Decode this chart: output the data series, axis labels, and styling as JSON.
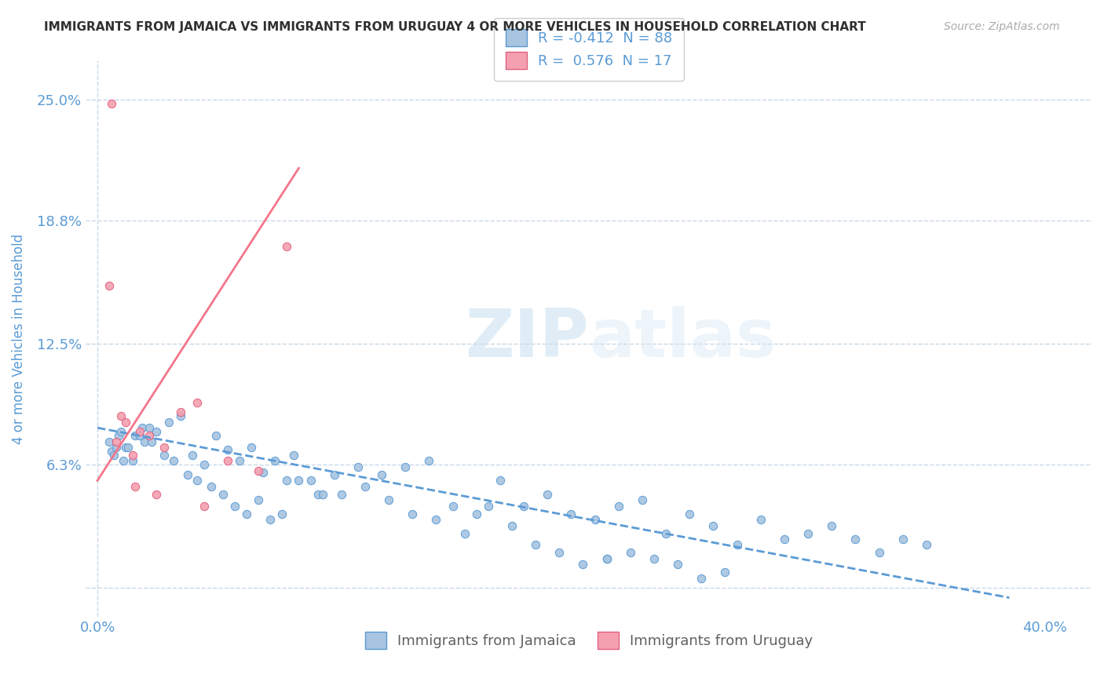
{
  "title": "IMMIGRANTS FROM JAMAICA VS IMMIGRANTS FROM URUGUAY 4 OR MORE VEHICLES IN HOUSEHOLD CORRELATION CHART",
  "source": "Source: ZipAtlas.com",
  "ylabel": "4 or more Vehicles in Household",
  "x_ticks": [
    0.0,
    0.4
  ],
  "x_tick_labels": [
    "0.0%",
    "40.0%"
  ],
  "y_ticks": [
    0.0,
    0.063,
    0.125,
    0.188,
    0.25
  ],
  "y_tick_labels": [
    "",
    "6.3%",
    "12.5%",
    "18.8%",
    "25.0%"
  ],
  "xlim": [
    -0.005,
    0.42
  ],
  "ylim": [
    -0.015,
    0.27
  ],
  "jamaica_R": -0.412,
  "jamaica_N": 88,
  "uruguay_R": 0.576,
  "uruguay_N": 17,
  "jamaica_color": "#a8c4e0",
  "jamaica_edge_color": "#5b9bd5",
  "uruguay_color": "#f4a0b0",
  "uruguay_edge_color": "#e06080",
  "jamaica_line_color": "#5b9bd5",
  "uruguay_line_color": "#f4768a",
  "jamaica_scatter_x": [
    0.005,
    0.006,
    0.007,
    0.008,
    0.009,
    0.01,
    0.011,
    0.012,
    0.013,
    0.015,
    0.016,
    0.018,
    0.019,
    0.02,
    0.022,
    0.023,
    0.025,
    0.028,
    0.03,
    0.032,
    0.035,
    0.038,
    0.04,
    0.042,
    0.045,
    0.048,
    0.05,
    0.053,
    0.055,
    0.058,
    0.06,
    0.063,
    0.065,
    0.068,
    0.07,
    0.073,
    0.075,
    0.078,
    0.08,
    0.083,
    0.085,
    0.09,
    0.093,
    0.095,
    0.1,
    0.103,
    0.11,
    0.113,
    0.12,
    0.123,
    0.13,
    0.133,
    0.14,
    0.143,
    0.15,
    0.155,
    0.16,
    0.165,
    0.17,
    0.175,
    0.18,
    0.185,
    0.19,
    0.195,
    0.2,
    0.205,
    0.21,
    0.215,
    0.22,
    0.225,
    0.23,
    0.235,
    0.24,
    0.245,
    0.25,
    0.255,
    0.26,
    0.265,
    0.28,
    0.3,
    0.32,
    0.33,
    0.34,
    0.35,
    0.27,
    0.29,
    0.31,
    0.215
  ],
  "jamaica_scatter_y": [
    0.075,
    0.07,
    0.068,
    0.072,
    0.078,
    0.08,
    0.065,
    0.072,
    0.072,
    0.065,
    0.078,
    0.078,
    0.082,
    0.075,
    0.082,
    0.075,
    0.08,
    0.068,
    0.085,
    0.065,
    0.088,
    0.058,
    0.068,
    0.055,
    0.063,
    0.052,
    0.078,
    0.048,
    0.071,
    0.042,
    0.065,
    0.038,
    0.072,
    0.045,
    0.059,
    0.035,
    0.065,
    0.038,
    0.055,
    0.068,
    0.055,
    0.055,
    0.048,
    0.048,
    0.058,
    0.048,
    0.062,
    0.052,
    0.058,
    0.045,
    0.062,
    0.038,
    0.065,
    0.035,
    0.042,
    0.028,
    0.038,
    0.042,
    0.055,
    0.032,
    0.042,
    0.022,
    0.048,
    0.018,
    0.038,
    0.012,
    0.035,
    0.015,
    0.042,
    0.018,
    0.045,
    0.015,
    0.028,
    0.012,
    0.038,
    0.005,
    0.032,
    0.008,
    0.035,
    0.028,
    0.025,
    0.018,
    0.025,
    0.022,
    0.022,
    0.025,
    0.032,
    0.015
  ],
  "uruguay_scatter_x": [
    0.005,
    0.006,
    0.008,
    0.01,
    0.012,
    0.015,
    0.016,
    0.018,
    0.022,
    0.025,
    0.028,
    0.035,
    0.042,
    0.045,
    0.055,
    0.068,
    0.08
  ],
  "uruguay_scatter_y": [
    0.155,
    0.248,
    0.075,
    0.088,
    0.085,
    0.068,
    0.052,
    0.08,
    0.078,
    0.048,
    0.072,
    0.09,
    0.095,
    0.042,
    0.065,
    0.06,
    0.175
  ],
  "jamaica_trend_x": [
    0.0,
    0.385
  ],
  "jamaica_trend_y": [
    0.082,
    -0.005
  ],
  "uruguay_trend_x": [
    0.0,
    0.085
  ],
  "uruguay_trend_y": [
    0.055,
    0.215
  ],
  "watermark_zip": "ZIP",
  "watermark_atlas": "atlas",
  "background_color": "#ffffff",
  "grid_color": "#c8d8e8",
  "title_color": "#303030",
  "axis_label_color": "#5b9bd5",
  "tick_color": "#5b9bd5"
}
